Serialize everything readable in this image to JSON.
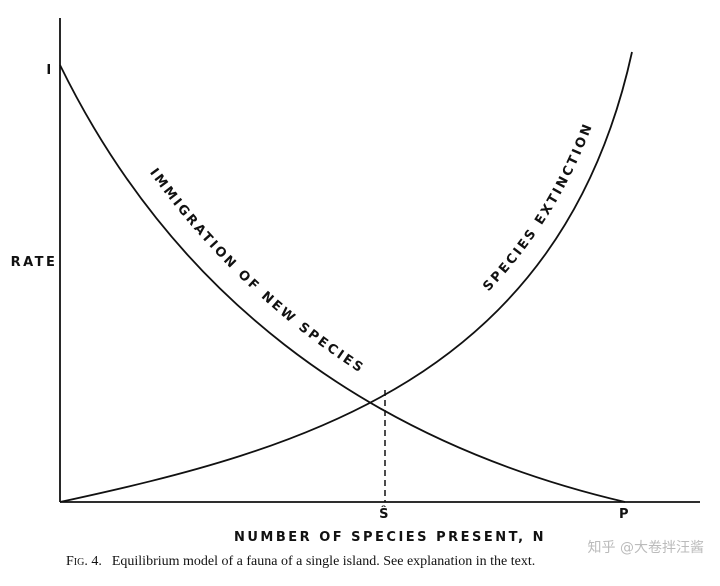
{
  "diagram": {
    "y_axis_top_label": "I",
    "y_axis_label": "RATE",
    "immigration_label": "IMMIGRATION OF NEW SPECIES",
    "extinction_label": "SPECIES EXTINCTION",
    "equilibrium_label": "Ŝ",
    "x_axis_end_label": "P",
    "x_axis_label": "NUMBER OF SPECIES PRESENT, N",
    "caption_figure": "Fig. 4.",
    "caption_text": "Equilibrium model of a fauna of a single island. See explanation in the text.",
    "watermark": "知乎 @大卷拌汪酱"
  }
}
